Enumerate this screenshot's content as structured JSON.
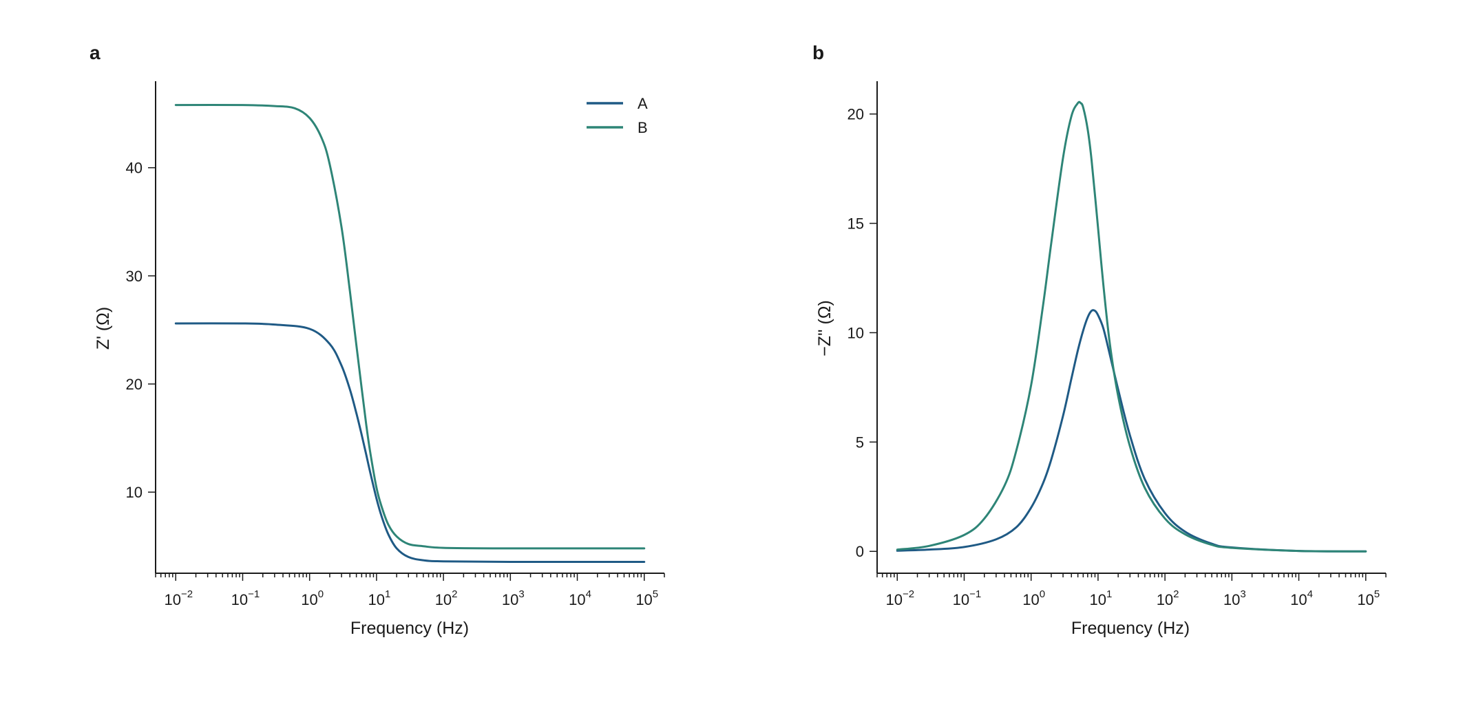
{
  "chart_data": [
    {
      "panel_label": "a",
      "type": "line",
      "xscale": "log",
      "xlim": [
        0.005,
        200000
      ],
      "ylim": [
        2.5,
        48.0
      ],
      "xlabel": "Frequency (Hz)",
      "ylabel": "Z' (Ω)",
      "yticks": [
        10,
        20,
        30,
        40
      ],
      "xticks": [
        0.01,
        0.1,
        1,
        10,
        100,
        1000,
        10000,
        100000
      ],
      "xtick_labels": [
        {
          "base": "10",
          "exp": "−2"
        },
        {
          "base": "10",
          "exp": "−1"
        },
        {
          "base": "10",
          "exp": "0"
        },
        {
          "base": "10",
          "exp": "1"
        },
        {
          "base": "10",
          "exp": "2"
        },
        {
          "base": "10",
          "exp": "3"
        },
        {
          "base": "10",
          "exp": "4"
        },
        {
          "base": "10",
          "exp": "5"
        }
      ],
      "grid": false,
      "legend": {
        "placement": "top-right"
      },
      "series": [
        {
          "name": "A",
          "color": "#1f5a85",
          "x": [
            0.01,
            0.1,
            0.3,
            1,
            2,
            3,
            4,
            5,
            6,
            7,
            8,
            10,
            12,
            15,
            20,
            30,
            50,
            100,
            1000,
            100000
          ],
          "y": [
            25.6,
            25.6,
            25.5,
            25.1,
            23.7,
            21.7,
            19.5,
            17.3,
            15.3,
            13.5,
            11.9,
            9.4,
            7.7,
            6.1,
            4.8,
            4.0,
            3.7,
            3.6,
            3.55,
            3.55
          ]
        },
        {
          "name": "B",
          "color": "#2e8577",
          "x": [
            0.01,
            0.1,
            0.3,
            0.6,
            1,
            1.5,
            2,
            3,
            4,
            5,
            6,
            7,
            8,
            10,
            12,
            15,
            20,
            30,
            50,
            100,
            1000,
            100000
          ],
          "y": [
            45.8,
            45.8,
            45.7,
            45.5,
            44.6,
            42.8,
            40.3,
            34.5,
            28.6,
            23.6,
            19.6,
            16.3,
            13.8,
            10.4,
            8.6,
            7.0,
            5.9,
            5.2,
            5.0,
            4.85,
            4.8,
            4.8
          ]
        }
      ]
    },
    {
      "panel_label": "b",
      "type": "line",
      "xscale": "log",
      "xlim": [
        0.005,
        200000
      ],
      "ylim": [
        -1.0,
        21.5
      ],
      "xlabel": "Frequency (Hz)",
      "ylabel": "−Z'' (Ω)",
      "yticks": [
        0,
        5,
        10,
        15,
        20
      ],
      "xticks": [
        0.01,
        0.1,
        1,
        10,
        100,
        1000,
        10000,
        100000
      ],
      "xtick_labels": [
        {
          "base": "10",
          "exp": "−2"
        },
        {
          "base": "10",
          "exp": "−1"
        },
        {
          "base": "10",
          "exp": "0"
        },
        {
          "base": "10",
          "exp": "1"
        },
        {
          "base": "10",
          "exp": "2"
        },
        {
          "base": "10",
          "exp": "3"
        },
        {
          "base": "10",
          "exp": "4"
        },
        {
          "base": "10",
          "exp": "5"
        }
      ],
      "grid": false,
      "series": [
        {
          "name": "A",
          "color": "#1f5a85",
          "x": [
            0.01,
            0.03,
            0.1,
            0.3,
            0.6,
            1,
            1.5,
            2,
            3,
            4,
            5,
            6,
            7,
            8,
            9,
            10,
            12,
            15,
            20,
            30,
            50,
            100,
            200,
            500,
            1000,
            10000,
            100000
          ],
          "y": [
            0.03,
            0.08,
            0.2,
            0.55,
            1.1,
            2.0,
            3.1,
            4.2,
            6.2,
            7.9,
            9.2,
            10.1,
            10.7,
            11.0,
            11.0,
            10.8,
            10.2,
            9.0,
            7.4,
            5.3,
            3.3,
            1.75,
            0.9,
            0.35,
            0.18,
            0.02,
            0.0
          ]
        },
        {
          "name": "B",
          "color": "#2e8577",
          "x": [
            0.01,
            0.03,
            0.1,
            0.2,
            0.4,
            0.6,
            1,
            1.5,
            2,
            3,
            4,
            5,
            5.5,
            6,
            7,
            8,
            10,
            12,
            15,
            20,
            30,
            50,
            100,
            200,
            500,
            1000,
            10000,
            100000
          ],
          "y": [
            0.08,
            0.25,
            0.75,
            1.5,
            3.0,
            4.6,
            7.6,
            11.2,
            14.1,
            18.0,
            19.9,
            20.5,
            20.5,
            20.3,
            19.3,
            17.9,
            14.8,
            12.2,
            9.5,
            7.1,
            4.8,
            2.9,
            1.5,
            0.78,
            0.3,
            0.16,
            0.02,
            0.0
          ]
        }
      ]
    }
  ]
}
